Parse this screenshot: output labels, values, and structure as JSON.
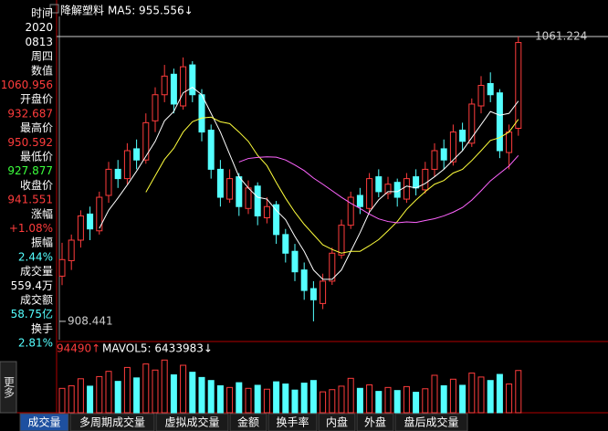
{
  "info_panel": [
    "时间",
    "2020",
    "0813",
    "周四",
    "数值",
    "1060.956",
    "开盘价",
    "932.687",
    "最高价",
    "950.592",
    "最低价",
    "927.877",
    "收盘价",
    "941.551",
    "涨幅",
    "+1.08%",
    "振幅",
    "2.44%",
    "成交量",
    "559.4万",
    "成交额",
    "58.75亿",
    "换手",
    "2.81%"
  ],
  "more_button": "更多",
  "tabs": [
    "成交量",
    "多周期成交量",
    "虚拟成交量",
    "金额",
    "换手率",
    "内盘",
    "外盘",
    "盘后成交量"
  ],
  "chart_data": {
    "type": "candlestick",
    "title": "降解塑料",
    "ma_label": "MA5: 955.556↓",
    "up_color": "#ff3c3c",
    "down_color": "#54ffff",
    "ylim": [
      898.6,
      1072.0
    ],
    "high_marker": 1061.224,
    "low_marker": 908.441,
    "open": [
      932.687,
      941,
      952,
      966,
      957,
      976,
      990,
      985,
      1001,
      995,
      1016,
      1030,
      1041,
      1024,
      1046,
      1030,
      1011,
      990,
      974,
      986,
      969,
      981,
      964,
      971,
      955,
      946,
      936,
      926,
      918,
      930,
      944,
      960,
      976,
      969,
      986,
      977,
      983,
      974,
      986,
      979,
      990,
      1001,
      994,
      1011,
      1004,
      1024,
      1036,
      1031,
      999,
      1012
    ],
    "high": [
      950.592,
      955,
      968,
      970,
      978,
      994,
      995,
      1004,
      1006,
      1020,
      1034,
      1046,
      1044,
      1050,
      1048,
      1033,
      1014,
      995,
      990,
      988,
      984,
      983,
      975,
      973,
      958,
      950,
      940,
      930,
      934,
      948,
      963,
      978,
      980,
      988,
      990,
      986,
      985,
      988,
      990,
      994,
      1004,
      1006,
      1014,
      1015,
      1028,
      1040,
      1042,
      1033,
      1014,
      1061.224
    ],
    "low": [
      927.877,
      936,
      948,
      952,
      955,
      972,
      980,
      982,
      990,
      993,
      1010,
      1026,
      1020,
      1022,
      1026,
      1005,
      985,
      970,
      972,
      965,
      966,
      960,
      961,
      950,
      940,
      930,
      920,
      908.441,
      915,
      928,
      942,
      958,
      966,
      967,
      975,
      974,
      970,
      972,
      976,
      977,
      986,
      990,
      992,
      1000,
      1002,
      1020,
      1026,
      996,
      990,
      1008
    ],
    "close": [
      941.551,
      952,
      965,
      958,
      975,
      990,
      985,
      1000,
      995,
      1015,
      1030,
      1040,
      1025,
      1045,
      1030,
      1010,
      990,
      975,
      985,
      970,
      980,
      965,
      970,
      955,
      945,
      935,
      925,
      920,
      930,
      945,
      960,
      975,
      970,
      985,
      978,
      982,
      975,
      985,
      980,
      990,
      1000,
      995,
      1010,
      1005,
      1025,
      1035,
      1030,
      1000,
      1010,
      1058
    ],
    "ma_lines": [
      {
        "color": "#ffffff",
        "values": [
          null,
          null,
          null,
          null,
          958.3,
          968,
          974.6,
          981.6,
          989,
          997,
          1005,
          1016,
          1021,
          1031,
          1034,
          1030,
          1020,
          1010,
          998,
          986,
          980,
          975,
          974,
          968,
          963,
          954,
          946,
          936,
          931,
          931,
          936,
          946,
          956,
          967,
          973.6,
          978,
          978,
          981,
          980,
          982.4,
          986,
          990,
          995,
          1000,
          1007,
          1014,
          1021,
          1019,
          1020,
          1026.6
        ]
      },
      {
        "color": "#ffff3c",
        "values": [
          null,
          null,
          null,
          null,
          null,
          null,
          null,
          null,
          null,
          977.7,
          986.5,
          995.3,
          1001.3,
          1010,
          1015.5,
          1017.5,
          1018,
          1015.5,
          1014.5,
          1010,
          1005,
          997.5,
          992,
          983,
          974.5,
          967,
          960.5,
          955,
          949.5,
          947,
          945,
          946,
          946,
          949,
          952.3,
          957,
          962,
          968.5,
          973.5,
          978,
          982,
          984,
          988,
          990,
          994.7,
          1000,
          1005.5,
          1007,
          1010,
          1016.8
        ]
      },
      {
        "color": "#ff64ff",
        "values": [
          null,
          null,
          null,
          null,
          null,
          null,
          null,
          null,
          null,
          null,
          null,
          null,
          null,
          null,
          null,
          null,
          null,
          null,
          null,
          993.9,
          995.8,
          996.4,
          996.7,
          996.5,
          995,
          992.3,
          989.3,
          985.3,
          982,
          978.5,
          975,
          971.8,
          969,
          966,
          963.4,
          962,
          961.3,
          961.8,
          961.5,
          962.5,
          963.5,
          965,
          967,
          969.5,
          973.5,
          978.5,
          983.8,
          987.8,
          991.8,
          997.4
        ]
      }
    ],
    "volume": {
      "left_label": "94490↑",
      "mavol_label": "MAVOL5: 6433983↓",
      "ylim": [
        0,
        13000000
      ],
      "values": [
        5594000,
        6200000,
        7800000,
        6100000,
        8300000,
        9500000,
        7200000,
        10400000,
        8000000,
        11200000,
        9800000,
        12100000,
        8700000,
        10900000,
        9300000,
        8100000,
        7400000,
        6200000,
        5800000,
        6900000,
        5600000,
        6300000,
        5400000,
        7100000,
        6600000,
        5200000,
        6800000,
        7400000,
        4800000,
        5300000,
        6100000,
        7900000,
        5600000,
        6400000,
        4900000,
        5800000,
        5100000,
        6000000,
        4700000,
        5500000,
        8600000,
        6200000,
        7700000,
        6300000,
        9100000,
        8200000,
        7400000,
        8800000,
        6600000,
        9700000
      ]
    }
  }
}
